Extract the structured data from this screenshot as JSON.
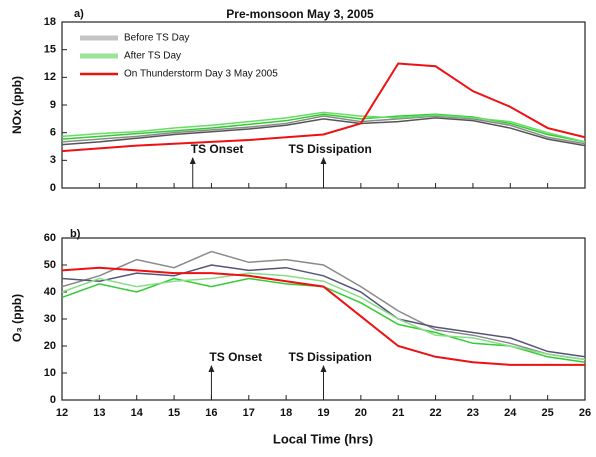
{
  "chart_data": [
    {
      "type": "line",
      "label": "a)",
      "title": "Pre-monsoon  May 3, 2005",
      "ylabel": "NOx (ppb)",
      "x": [
        12,
        13,
        14,
        15,
        16,
        17,
        18,
        19,
        20,
        21,
        22,
        23,
        24,
        25,
        26
      ],
      "xlim": [
        12,
        26
      ],
      "ylim": [
        0,
        18
      ],
      "yticks": [
        0,
        3,
        6,
        9,
        12,
        15,
        18
      ],
      "legend": "upper left",
      "series": [
        {
          "name": "Before TS Day",
          "color": "#8a8a8a",
          "values": [
            5,
            5.3,
            5.6,
            6,
            6.3,
            6.6,
            7,
            7.8,
            7.2,
            7.5,
            7.8,
            7.5,
            6.8,
            5.5,
            4.8
          ]
        },
        {
          "color": "#555555",
          "values": [
            4.7,
            5,
            5.4,
            5.8,
            6.1,
            6.4,
            6.8,
            7.5,
            7,
            7.2,
            7.6,
            7.3,
            6.5,
            5.3,
            4.6
          ]
        },
        {
          "name": "After TS Day",
          "color": "#33cc33",
          "values": [
            5.3,
            5.6,
            5.9,
            6.2,
            6.5,
            6.9,
            7.3,
            8,
            7.5,
            7.8,
            8,
            7.7,
            7,
            5.8,
            5
          ]
        },
        {
          "color": "#66dd66",
          "values": [
            5.6,
            5.9,
            6.1,
            6.5,
            6.8,
            7.2,
            7.6,
            8.2,
            7.8,
            7.6,
            7.9,
            7.6,
            7.2,
            6,
            5
          ]
        },
        {
          "name": "On Thunderstorm Day 3 May 2005",
          "color": "#ee1111",
          "values": [
            4,
            4.3,
            4.6,
            4.8,
            5,
            5.2,
            5.5,
            5.8,
            7,
            13.5,
            13.2,
            10.5,
            8.8,
            6.5,
            5.5
          ]
        }
      ],
      "annotations": [
        {
          "text": "TS Onset",
          "x": 15.5
        },
        {
          "text": "TS Dissipation",
          "x": 19
        }
      ]
    },
    {
      "type": "line",
      "label": "b)",
      "ylabel": "O₃ (ppb)",
      "xlabel": "Local Time (hrs)",
      "x": [
        12,
        13,
        14,
        15,
        16,
        17,
        18,
        19,
        20,
        21,
        22,
        23,
        24,
        25,
        26
      ],
      "xlim": [
        12,
        26
      ],
      "xticks": [
        12,
        13,
        14,
        15,
        16,
        17,
        18,
        19,
        20,
        21,
        22,
        23,
        24,
        25,
        26
      ],
      "ylim": [
        0,
        60
      ],
      "yticks": [
        0,
        10,
        20,
        30,
        40,
        50,
        60
      ],
      "series": [
        {
          "color": "#8a8a8a",
          "values": [
            42,
            46,
            52,
            49,
            55,
            51,
            52,
            50,
            42,
            33,
            26,
            24,
            21,
            17,
            15
          ]
        },
        {
          "color": "#555577",
          "values": [
            45,
            44,
            47,
            46,
            50,
            48,
            49,
            46,
            40,
            30,
            27,
            25,
            23,
            18,
            16
          ]
        },
        {
          "color": "#33cc33",
          "values": [
            38,
            43,
            40,
            45,
            42,
            45,
            43,
            42,
            36,
            28,
            25,
            21,
            20,
            16,
            14
          ]
        },
        {
          "color": "#88dd88",
          "values": [
            40,
            45,
            42,
            44,
            45,
            47,
            46,
            44,
            38,
            30,
            24,
            23,
            20,
            17,
            15
          ]
        },
        {
          "color": "#ee1111",
          "values": [
            48,
            49,
            48,
            47,
            47,
            46,
            44,
            42,
            31,
            20,
            16,
            14,
            13,
            13,
            13
          ]
        }
      ],
      "annotations": [
        {
          "text": "TS Onset",
          "x": 16
        },
        {
          "text": "TS Dissipation",
          "x": 19
        }
      ]
    }
  ]
}
